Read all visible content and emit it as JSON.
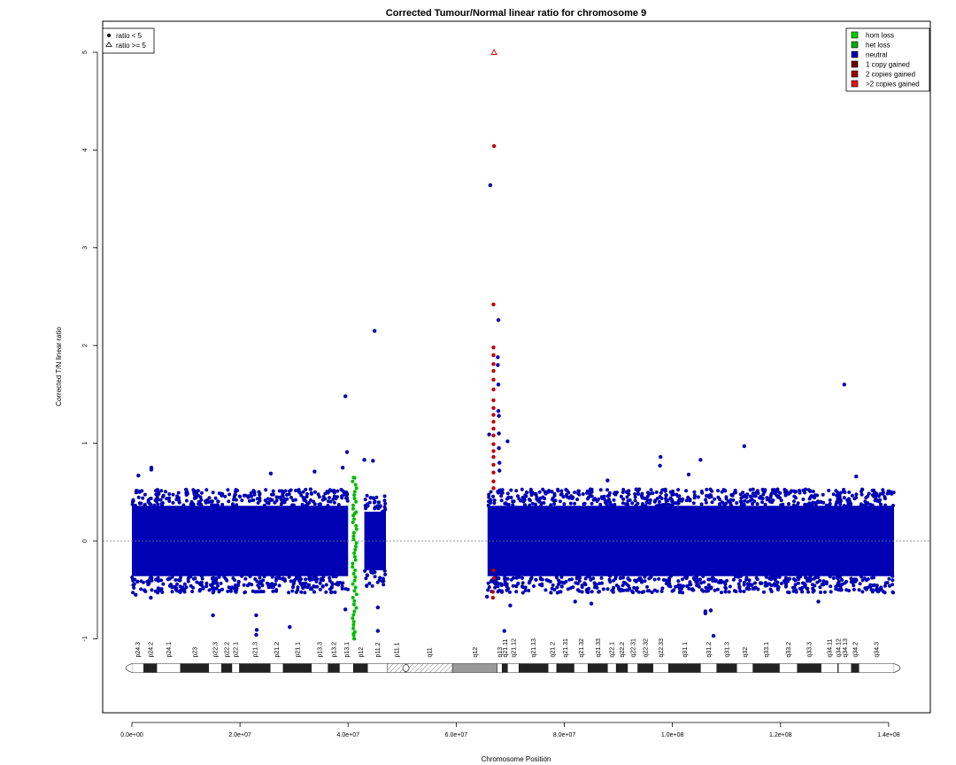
{
  "chart_data": {
    "type": "scatter",
    "title": "Corrected Tumour/Normal linear ratio for chromosome  9",
    "xlabel": "Chromosome Position",
    "ylabel": "Corrected T/N linear ratio",
    "xlim": [
      0,
      141000000
    ],
    "ylim": [
      -1.8,
      5.25
    ],
    "x_ticks": [
      0,
      20000000,
      40000000,
      60000000,
      80000000,
      100000000,
      120000000,
      140000000
    ],
    "x_tick_labels": [
      "0.0e+00",
      "2.0e+07",
      "4.0e+07",
      "6.0e+07",
      "8.0e+07",
      "1.0e+08",
      "1.2e+08",
      "1.4e+08"
    ],
    "y_ticks": [
      -1,
      0,
      1,
      2,
      3,
      4,
      5
    ],
    "y_tick_labels": [
      "-1",
      "0",
      "1",
      "2",
      "3",
      "4",
      "5"
    ],
    "reference_line": 0,
    "shape_legend": {
      "position": "top-left",
      "entries": [
        {
          "label": "ratio < 5",
          "symbol": "filled-circle"
        },
        {
          "label": "ratio >= 5",
          "symbol": "open-triangle"
        }
      ]
    },
    "color_legend": {
      "position": "top-right",
      "entries": [
        {
          "label": "hom loss",
          "color": "#00d400"
        },
        {
          "label": "het loss",
          "color": "#00aa00"
        },
        {
          "label": "neutral",
          "color": "#0000b4"
        },
        {
          "label": "1 copy gained",
          "color": "#6e0000"
        },
        {
          "label": "2 copies gained",
          "color": "#a00000"
        },
        {
          "label": ">2 copies gained",
          "color": "#e61414"
        }
      ]
    },
    "colors": {
      "neutral": "#0000b4",
      "loss": "#00bb00",
      "gain": "#c00000",
      "ratio_ge_5": "#d00000",
      "reference_line": "#777777"
    },
    "series": [
      {
        "name": "neutral",
        "color": "#0000b4",
        "symbol": "filled-circle",
        "bands": [
          {
            "x_range": [
              0,
              40000000
            ],
            "y_center": 0,
            "y_halfwidth": 0.36
          },
          {
            "x_range": [
              43000000,
              47000000
            ],
            "y_center": 0,
            "y_halfwidth": 0.3
          },
          {
            "x_range": [
              65800000,
              141000000
            ],
            "y_center": 0,
            "y_halfwidth": 0.36
          }
        ],
        "points": [
          {
            "x": 1200000,
            "y": 0.67
          },
          {
            "x": 3600000,
            "y": 0.75
          },
          {
            "x": 3600000,
            "y": 0.73
          },
          {
            "x": 700000,
            "y": -0.55
          },
          {
            "x": 3500000,
            "y": -0.58
          },
          {
            "x": 15000000,
            "y": -0.76
          },
          {
            "x": 23000000,
            "y": -0.76
          },
          {
            "x": 23100000,
            "y": -0.91
          },
          {
            "x": 23000000,
            "y": -0.96
          },
          {
            "x": 25700000,
            "y": 0.69
          },
          {
            "x": 29200000,
            "y": -0.88
          },
          {
            "x": 33800000,
            "y": 0.71
          },
          {
            "x": 39000000,
            "y": 0.75
          },
          {
            "x": 39500000,
            "y": 1.48
          },
          {
            "x": 39800000,
            "y": 0.91
          },
          {
            "x": 39500000,
            "y": -0.7
          },
          {
            "x": 43000000,
            "y": 0.83
          },
          {
            "x": 44600000,
            "y": 0.82
          },
          {
            "x": 44900000,
            "y": 2.15
          },
          {
            "x": 45500000,
            "y": -0.68
          },
          {
            "x": 45500000,
            "y": -0.92
          },
          {
            "x": 65700000,
            "y": -0.57
          },
          {
            "x": 66100000,
            "y": 1.09
          },
          {
            "x": 66300000,
            "y": 3.64
          },
          {
            "x": 67800000,
            "y": 2.26
          },
          {
            "x": 67700000,
            "y": 1.88
          },
          {
            "x": 67700000,
            "y": 1.8
          },
          {
            "x": 67800000,
            "y": 1.6
          },
          {
            "x": 67800000,
            "y": 1.33
          },
          {
            "x": 67900000,
            "y": 1.28
          },
          {
            "x": 67900000,
            "y": 1.1
          },
          {
            "x": 67900000,
            "y": 0.95
          },
          {
            "x": 68000000,
            "y": 0.8
          },
          {
            "x": 68000000,
            "y": 0.72
          },
          {
            "x": 69500000,
            "y": 1.02
          },
          {
            "x": 68900000,
            "y": -0.92
          },
          {
            "x": 70000000,
            "y": -0.66
          },
          {
            "x": 88000000,
            "y": 0.62
          },
          {
            "x": 97800000,
            "y": 0.86
          },
          {
            "x": 97700000,
            "y": 0.77
          },
          {
            "x": 103000000,
            "y": 0.68
          },
          {
            "x": 105200000,
            "y": 0.83
          },
          {
            "x": 106100000,
            "y": -0.72
          },
          {
            "x": 106100000,
            "y": -0.74
          },
          {
            "x": 107100000,
            "y": -0.71
          },
          {
            "x": 107600000,
            "y": -0.97
          },
          {
            "x": 113300000,
            "y": 0.97
          },
          {
            "x": 131800000,
            "y": 1.6
          },
          {
            "x": 134000000,
            "y": 0.66
          },
          {
            "x": 82000000,
            "y": -0.62
          },
          {
            "x": 85000000,
            "y": -0.64
          },
          {
            "x": 127000000,
            "y": -0.62
          }
        ]
      },
      {
        "name": "hom loss / het loss",
        "color": "#00bb00",
        "symbol": "filled-circle",
        "x_range": [
          40800000,
          41600000
        ],
        "y_range": [
          -1.0,
          0.65
        ],
        "points": [
          {
            "x": 41000000,
            "y": 0.65
          },
          {
            "x": 41200000,
            "y": 0.28
          },
          {
            "x": 41000000,
            "y": -0.95
          },
          {
            "x": 41100000,
            "y": -1.0
          }
        ]
      },
      {
        "name": "2 copies gained",
        "color": "#c00000",
        "symbol": "filled-circle",
        "points": [
          {
            "x": 67000000,
            "y": 4.04
          },
          {
            "x": 66900000,
            "y": 2.42
          },
          {
            "x": 66900000,
            "y": 1.98
          },
          {
            "x": 66900000,
            "y": 1.9
          },
          {
            "x": 66900000,
            "y": 1.81
          },
          {
            "x": 66900000,
            "y": 1.74
          },
          {
            "x": 66900000,
            "y": 1.65
          },
          {
            "x": 66900000,
            "y": 1.55
          },
          {
            "x": 66900000,
            "y": 1.44
          },
          {
            "x": 66900000,
            "y": 1.36
          },
          {
            "x": 66900000,
            "y": 1.29
          },
          {
            "x": 66900000,
            "y": 1.22
          },
          {
            "x": 66900000,
            "y": 1.15
          },
          {
            "x": 66900000,
            "y": 1.08
          },
          {
            "x": 66900000,
            "y": 0.99
          },
          {
            "x": 66900000,
            "y": 0.92
          },
          {
            "x": 66900000,
            "y": 0.86
          },
          {
            "x": 66900000,
            "y": 0.78
          },
          {
            "x": 66900000,
            "y": 0.7
          },
          {
            "x": 66900000,
            "y": 0.61
          },
          {
            "x": 66900000,
            "y": 0.54
          },
          {
            "x": 66900000,
            "y": -0.3
          },
          {
            "x": 67000000,
            "y": -0.38
          },
          {
            "x": 66800000,
            "y": -0.52
          },
          {
            "x": 66800000,
            "y": -0.58
          }
        ]
      },
      {
        "name": "ratio >= 5",
        "color": "#d00000",
        "symbol": "open-triangle",
        "points": [
          {
            "x": 67000000,
            "y": 5.0
          }
        ]
      }
    ],
    "ideogram": {
      "y": -1.3,
      "bands": [
        {
          "name": "p24.3",
          "start": 0,
          "end": 2200000,
          "stain": "gneg"
        },
        {
          "name": "p24.2",
          "start": 2200000,
          "end": 4600000,
          "stain": "gpos"
        },
        {
          "name": "p24.1",
          "start": 4600000,
          "end": 9000000,
          "stain": "gneg"
        },
        {
          "name": "p23",
          "start": 9000000,
          "end": 14200000,
          "stain": "gpos"
        },
        {
          "name": "p22.3",
          "start": 14200000,
          "end": 16600000,
          "stain": "gneg"
        },
        {
          "name": "p22.2",
          "start": 16600000,
          "end": 18500000,
          "stain": "gpos"
        },
        {
          "name": "p22.1",
          "start": 18500000,
          "end": 19900000,
          "stain": "gneg"
        },
        {
          "name": "p21.3",
          "start": 19900000,
          "end": 25600000,
          "stain": "gpos"
        },
        {
          "name": "p21.2",
          "start": 25600000,
          "end": 28000000,
          "stain": "gneg"
        },
        {
          "name": "p21.1",
          "start": 28000000,
          "end": 33200000,
          "stain": "gpos"
        },
        {
          "name": "p13.3",
          "start": 33200000,
          "end": 36300000,
          "stain": "gneg"
        },
        {
          "name": "p13.2",
          "start": 36300000,
          "end": 38400000,
          "stain": "gpos"
        },
        {
          "name": "p13.1",
          "start": 38400000,
          "end": 41000000,
          "stain": "gneg"
        },
        {
          "name": "p12",
          "start": 41000000,
          "end": 43600000,
          "stain": "gpos"
        },
        {
          "name": "p11.2",
          "start": 43600000,
          "end": 47300000,
          "stain": "gneg"
        },
        {
          "name": "p11.1",
          "start": 47300000,
          "end": 50700000,
          "stain": "hatched"
        },
        {
          "name": "q11",
          "start": 50700000,
          "end": 59300000,
          "stain": "hatched"
        },
        {
          "name": "q12",
          "start": 59300000,
          "end": 67600000,
          "stain": "gvar"
        },
        {
          "name": "q13",
          "start": 67600000,
          "end": 68500000,
          "stain": "gneg"
        },
        {
          "name": "q21.11",
          "start": 68500000,
          "end": 69500000,
          "stain": "gpos"
        },
        {
          "name": "q21.12",
          "start": 69500000,
          "end": 71600000,
          "stain": "gneg"
        },
        {
          "name": "q21.13",
          "start": 71600000,
          "end": 77000000,
          "stain": "gpos"
        },
        {
          "name": "q21.2",
          "start": 77000000,
          "end": 78600000,
          "stain": "gneg"
        },
        {
          "name": "q21.31",
          "start": 78600000,
          "end": 81800000,
          "stain": "gpos"
        },
        {
          "name": "q21.32",
          "start": 81800000,
          "end": 84400000,
          "stain": "gneg"
        },
        {
          "name": "q21.33",
          "start": 84400000,
          "end": 88000000,
          "stain": "gpos"
        },
        {
          "name": "q22.1",
          "start": 88000000,
          "end": 89600000,
          "stain": "gneg"
        },
        {
          "name": "q22.2",
          "start": 89600000,
          "end": 91700000,
          "stain": "gpos"
        },
        {
          "name": "q22.31",
          "start": 91700000,
          "end": 93600000,
          "stain": "gneg"
        },
        {
          "name": "q22.32",
          "start": 93600000,
          "end": 96400000,
          "stain": "gpos"
        },
        {
          "name": "q22.33",
          "start": 96400000,
          "end": 99300000,
          "stain": "gneg"
        },
        {
          "name": "q31.1",
          "start": 99300000,
          "end": 105200000,
          "stain": "gpos"
        },
        {
          "name": "q31.2",
          "start": 105200000,
          "end": 108200000,
          "stain": "gneg"
        },
        {
          "name": "q31.3",
          "start": 108200000,
          "end": 111900000,
          "stain": "gpos"
        },
        {
          "name": "q32",
          "start": 111900000,
          "end": 114900000,
          "stain": "gneg"
        },
        {
          "name": "q33.1",
          "start": 114900000,
          "end": 119800000,
          "stain": "gpos"
        },
        {
          "name": "q33.2",
          "start": 119800000,
          "end": 123100000,
          "stain": "gneg"
        },
        {
          "name": "q33.3",
          "start": 123100000,
          "end": 127500000,
          "stain": "gpos"
        },
        {
          "name": "q34.11",
          "start": 127500000,
          "end": 130600000,
          "stain": "gneg"
        },
        {
          "name": "q34.12",
          "start": 130600000,
          "end": 130700000,
          "stain": "gpos"
        },
        {
          "name": "q34.13",
          "start": 130700000,
          "end": 133100000,
          "stain": "gneg"
        },
        {
          "name": "q34.2",
          "start": 133100000,
          "end": 134500000,
          "stain": "gpos"
        },
        {
          "name": "q34.3",
          "start": 134500000,
          "end": 141000000,
          "stain": "gneg"
        }
      ]
    }
  }
}
